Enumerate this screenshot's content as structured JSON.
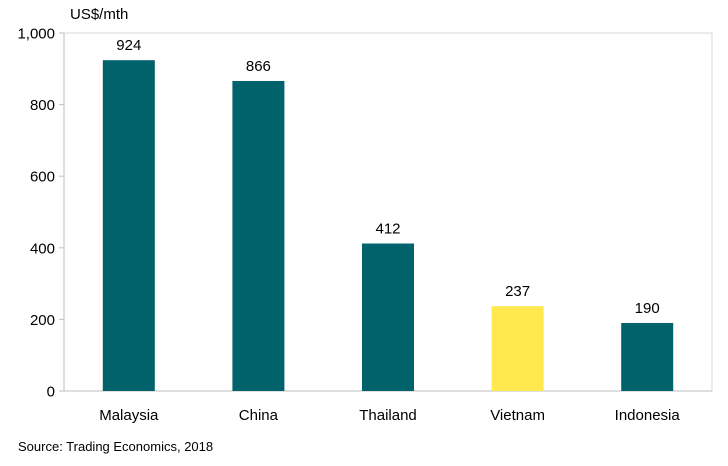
{
  "chart": {
    "unit_label": "US$/mth",
    "source": "Source: Trading Economics, 2018"
  },
  "chart_data": {
    "type": "bar",
    "title": "",
    "xlabel": "",
    "ylabel": "US$/mth",
    "categories": [
      "Malaysia",
      "China",
      "Thailand",
      "Vietnam",
      "Indonesia"
    ],
    "values": [
      924,
      866,
      412,
      237,
      190
    ],
    "data_labels": [
      "924",
      "866",
      "412",
      "237",
      "190"
    ],
    "y_tick_values": [
      0,
      200,
      400,
      600,
      800,
      1000
    ],
    "y_tick_labels": [
      "0",
      "200",
      "400",
      "600",
      "800",
      "1,000"
    ],
    "ylim": [
      0,
      1000
    ],
    "grid": false,
    "legend": "none",
    "colors": {
      "default_bar": "#00636b",
      "highlight_bar": "#ffe94f",
      "axis": "#bfbfbf",
      "frame": "#d9d9d9"
    },
    "highlight_category": "Vietnam"
  }
}
